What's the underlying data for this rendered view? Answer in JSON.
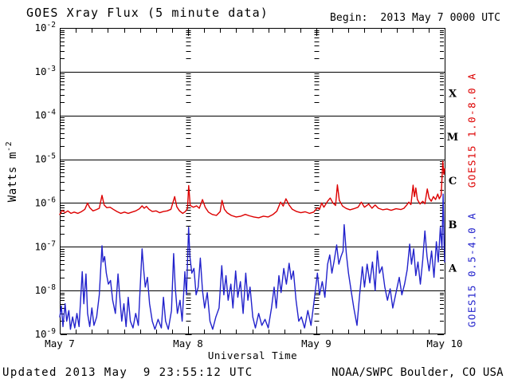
{
  "header": {
    "title": "GOES Xray Flux (5 minute data)",
    "begin_label": "Begin:  2013 May 7 0000 UTC"
  },
  "footer": {
    "updated": "Updated 2013 May  9 23:55:12 UTC",
    "organization": "NOAA/SWPC Boulder, CO USA"
  },
  "chart_data": {
    "type": "line",
    "title": "GOES Xray Flux (5 minute data)",
    "xlabel": "Universal Time",
    "ylabel": {
      "base": "Watts m",
      "exp": "-2"
    },
    "x_axis": {
      "day_labels": [
        "May 7",
        "May 8",
        "May 9",
        "May 10"
      ],
      "total_hours": 72,
      "minor_tick_hours": 3,
      "start": "2013 May 7 0000 UTC"
    },
    "y_axis": {
      "scale": "log",
      "unit": "Watts m^-2",
      "tick_exponents": [
        -2,
        -3,
        -4,
        -5,
        -6,
        -7,
        -8,
        -9
      ],
      "grid_exponents": [
        -3,
        -4,
        -5,
        -6,
        -7,
        -8
      ]
    },
    "flare_classes": [
      {
        "label": "X",
        "mid_exponent": -3.5
      },
      {
        "label": "M",
        "mid_exponent": -4.5
      },
      {
        "label": "C",
        "mid_exponent": -5.5
      },
      {
        "label": "B",
        "mid_exponent": -6.5
      },
      {
        "label": "A",
        "mid_exponent": -7.5
      }
    ],
    "colors": {
      "long": "#dd0000",
      "short": "#2222cc",
      "axis": "#000000"
    },
    "series": [
      {
        "name": "GOES15 1.0-8.0 A",
        "color": "#dd0000",
        "points": [
          [
            0,
            5.5e-07
          ],
          [
            0.5,
            6.8e-07
          ],
          [
            1.0,
            6e-07
          ],
          [
            1.5,
            6.6e-07
          ],
          [
            2.1,
            5.8e-07
          ],
          [
            2.7,
            6.2e-07
          ],
          [
            3.4,
            5.8e-07
          ],
          [
            4.1,
            6.4e-07
          ],
          [
            4.7,
            7.2e-07
          ],
          [
            5.2,
            1e-06
          ],
          [
            5.6,
            7.8e-07
          ],
          [
            6.2,
            6.6e-07
          ],
          [
            6.8,
            7e-07
          ],
          [
            7.4,
            7.6e-07
          ],
          [
            7.9,
            1.5e-06
          ],
          [
            8.3,
            9e-07
          ],
          [
            8.8,
            7.8e-07
          ],
          [
            9.4,
            8e-07
          ],
          [
            10.0,
            7.2e-07
          ],
          [
            10.7,
            6.4e-07
          ],
          [
            11.4,
            5.8e-07
          ],
          [
            12.1,
            6.2e-07
          ],
          [
            12.8,
            5.8e-07
          ],
          [
            13.5,
            6.2e-07
          ],
          [
            14.2,
            6.6e-07
          ],
          [
            14.9,
            7.4e-07
          ],
          [
            15.4,
            8.6e-07
          ],
          [
            15.8,
            7.6e-07
          ],
          [
            16.2,
            8.4e-07
          ],
          [
            16.7,
            7.2e-07
          ],
          [
            17.3,
            6.4e-07
          ],
          [
            18.0,
            6.6e-07
          ],
          [
            18.7,
            6e-07
          ],
          [
            19.4,
            6.4e-07
          ],
          [
            20.1,
            6.6e-07
          ],
          [
            20.8,
            7.2e-07
          ],
          [
            21.5,
            1.4e-06
          ],
          [
            21.9,
            8.2e-07
          ],
          [
            22.4,
            6.6e-07
          ],
          [
            23.0,
            5.8e-07
          ],
          [
            23.5,
            6.4e-07
          ],
          [
            23.9,
            7.5e-07
          ],
          [
            24.12,
            2.5e-06
          ],
          [
            24.4,
            8.8e-07
          ],
          [
            25.0,
            8e-07
          ],
          [
            25.6,
            8.6e-07
          ],
          [
            26.1,
            7.6e-07
          ],
          [
            26.7,
            1.2e-06
          ],
          [
            27.2,
            8e-07
          ],
          [
            27.8,
            6.2e-07
          ],
          [
            28.5,
            5.5e-07
          ],
          [
            29.3,
            5.2e-07
          ],
          [
            30.0,
            6.4e-07
          ],
          [
            30.35,
            1.15e-06
          ],
          [
            30.8,
            7.2e-07
          ],
          [
            31.3,
            6e-07
          ],
          [
            32.1,
            5.2e-07
          ],
          [
            33.0,
            4.8e-07
          ],
          [
            33.9,
            5e-07
          ],
          [
            34.7,
            5.5e-07
          ],
          [
            35.5,
            5.1e-07
          ],
          [
            36.3,
            4.8e-07
          ],
          [
            37.2,
            4.6e-07
          ],
          [
            38.1,
            5e-07
          ],
          [
            39.0,
            4.8e-07
          ],
          [
            39.9,
            5.5e-07
          ],
          [
            40.6,
            6.5e-07
          ],
          [
            41.3,
            1.05e-06
          ],
          [
            41.8,
            8.5e-07
          ],
          [
            42.3,
            1.25e-06
          ],
          [
            42.9,
            9e-07
          ],
          [
            43.5,
            7.2e-07
          ],
          [
            44.3,
            6.4e-07
          ],
          [
            45.1,
            6e-07
          ],
          [
            45.9,
            6.3e-07
          ],
          [
            46.7,
            5.8e-07
          ],
          [
            47.5,
            6.2e-07
          ],
          [
            48.2,
            7.8e-07
          ],
          [
            48.6,
            7.2e-07
          ],
          [
            49.0,
            1e-06
          ],
          [
            49.4,
            8e-07
          ],
          [
            50.1,
            1.1e-06
          ],
          [
            50.6,
            1.3e-06
          ],
          [
            51.1,
            1e-06
          ],
          [
            51.6,
            8.8e-07
          ],
          [
            51.93,
            2.6e-06
          ],
          [
            52.3,
            1.15e-06
          ],
          [
            52.9,
            8.5e-07
          ],
          [
            53.6,
            7.5e-07
          ],
          [
            54.3,
            7e-07
          ],
          [
            55.0,
            7.4e-07
          ],
          [
            55.8,
            8e-07
          ],
          [
            56.4,
            1.05e-06
          ],
          [
            57.0,
            8e-07
          ],
          [
            57.8,
            9.5e-07
          ],
          [
            58.4,
            7.6e-07
          ],
          [
            59.0,
            9e-07
          ],
          [
            59.6,
            7.6e-07
          ],
          [
            60.4,
            7e-07
          ],
          [
            61.2,
            7.3e-07
          ],
          [
            62.0,
            6.8e-07
          ],
          [
            62.9,
            7.4e-07
          ],
          [
            63.8,
            7.1e-07
          ],
          [
            64.4,
            7.6e-07
          ],
          [
            64.9,
            9e-07
          ],
          [
            65.3,
            1.05e-06
          ],
          [
            65.7,
            9.2e-07
          ],
          [
            66.1,
            2.55e-06
          ],
          [
            66.35,
            1.4e-06
          ],
          [
            66.6,
            2.2e-06
          ],
          [
            66.9,
            1.2e-06
          ],
          [
            67.4,
            9.5e-07
          ],
          [
            67.9,
            1.1e-06
          ],
          [
            68.3,
            9.6e-07
          ],
          [
            68.75,
            2.1e-06
          ],
          [
            69.1,
            1.3e-06
          ],
          [
            69.5,
            1.1e-06
          ],
          [
            69.9,
            1.4e-06
          ],
          [
            70.3,
            1.2e-06
          ],
          [
            70.7,
            1.6e-06
          ],
          [
            71.0,
            1.25e-06
          ],
          [
            71.35,
            1.5e-06
          ],
          [
            71.65,
            9e-06
          ],
          [
            71.85,
            4.5e-06
          ],
          [
            72,
            6e-06
          ]
        ]
      },
      {
        "name": "GOES15 0.5-4.0 A",
        "color": "#2222cc",
        "points": [
          [
            0,
            2.5e-09
          ],
          [
            0.3,
            4.5e-09
          ],
          [
            0.6,
            1.5e-09
          ],
          [
            1.0,
            5e-09
          ],
          [
            1.3,
            2e-09
          ],
          [
            1.7,
            3.5e-09
          ],
          [
            2.0,
            1.3e-09
          ],
          [
            2.4,
            2.5e-09
          ],
          [
            2.8,
            1.4e-09
          ],
          [
            3.2,
            3e-09
          ],
          [
            3.6,
            1.5e-09
          ],
          [
            4.2,
            2.7e-08
          ],
          [
            4.5,
            5e-09
          ],
          [
            4.9,
            2.4e-08
          ],
          [
            5.2,
            3e-09
          ],
          [
            5.6,
            1.5e-09
          ],
          [
            6.0,
            4e-09
          ],
          [
            6.4,
            1.6e-09
          ],
          [
            6.9,
            2.5e-09
          ],
          [
            7.4,
            8e-09
          ],
          [
            7.9,
            1.05e-07
          ],
          [
            8.1,
            4.5e-08
          ],
          [
            8.4,
            6e-08
          ],
          [
            8.7,
            2.5e-08
          ],
          [
            9.1,
            1.4e-08
          ],
          [
            9.5,
            1.7e-08
          ],
          [
            9.9,
            6e-09
          ],
          [
            10.4,
            3e-09
          ],
          [
            10.9,
            2.4e-08
          ],
          [
            11.2,
            8e-09
          ],
          [
            11.6,
            2e-09
          ],
          [
            12.0,
            5e-09
          ],
          [
            12.4,
            1.5e-09
          ],
          [
            12.8,
            7e-09
          ],
          [
            13.2,
            2e-09
          ],
          [
            13.7,
            1.4e-09
          ],
          [
            14.2,
            3e-09
          ],
          [
            14.7,
            1.6e-09
          ],
          [
            15.4,
            9e-08
          ],
          [
            15.7,
            3e-08
          ],
          [
            16.0,
            1.2e-08
          ],
          [
            16.4,
            2e-08
          ],
          [
            16.8,
            5e-09
          ],
          [
            17.3,
            2e-09
          ],
          [
            17.8,
            1.3e-09
          ],
          [
            18.4,
            2.2e-09
          ],
          [
            19.0,
            1.4e-09
          ],
          [
            19.4,
            7e-09
          ],
          [
            19.8,
            2e-09
          ],
          [
            20.3,
            1.3e-09
          ],
          [
            20.9,
            3.5e-09
          ],
          [
            21.3,
            7e-08
          ],
          [
            21.6,
            1.2e-08
          ],
          [
            22.0,
            3e-09
          ],
          [
            22.5,
            6e-09
          ],
          [
            22.9,
            2e-09
          ],
          [
            23.4,
            2.7e-08
          ],
          [
            23.7,
            8e-09
          ],
          [
            24.1,
            2.8e-07
          ],
          [
            24.35,
            6e-08
          ],
          [
            24.7,
            2.5e-08
          ],
          [
            25.1,
            3.2e-08
          ],
          [
            25.5,
            8e-09
          ],
          [
            25.9,
            1.2e-08
          ],
          [
            26.3,
            5.5e-08
          ],
          [
            26.7,
            1e-08
          ],
          [
            27.1,
            4e-09
          ],
          [
            27.6,
            9e-09
          ],
          [
            28.1,
            2e-09
          ],
          [
            28.6,
            1.3e-09
          ],
          [
            29.2,
            2.5e-09
          ],
          [
            29.8,
            4e-09
          ],
          [
            30.3,
            3.7e-08
          ],
          [
            30.7,
            8e-09
          ],
          [
            31.1,
            2.2e-08
          ],
          [
            31.5,
            6e-09
          ],
          [
            32.0,
            1.4e-08
          ],
          [
            32.4,
            4e-09
          ],
          [
            32.9,
            2.8e-08
          ],
          [
            33.3,
            7e-09
          ],
          [
            33.8,
            1.6e-08
          ],
          [
            34.3,
            3e-09
          ],
          [
            34.8,
            2.5e-08
          ],
          [
            35.2,
            6e-09
          ],
          [
            35.6,
            1.2e-08
          ],
          [
            36.1,
            2.5e-09
          ],
          [
            36.6,
            1.4e-09
          ],
          [
            37.2,
            3e-09
          ],
          [
            37.8,
            1.6e-09
          ],
          [
            38.4,
            2.2e-09
          ],
          [
            39.0,
            1.4e-09
          ],
          [
            39.6,
            4e-09
          ],
          [
            40.1,
            1.2e-08
          ],
          [
            40.5,
            4e-09
          ],
          [
            41.0,
            2.2e-08
          ],
          [
            41.4,
            9e-09
          ],
          [
            41.9,
            3.2e-08
          ],
          [
            42.4,
            1.4e-08
          ],
          [
            42.9,
            4.2e-08
          ],
          [
            43.3,
            1.8e-08
          ],
          [
            43.7,
            2.8e-08
          ],
          [
            44.2,
            6e-09
          ],
          [
            44.7,
            2e-09
          ],
          [
            45.2,
            2.5e-09
          ],
          [
            45.8,
            1.4e-09
          ],
          [
            46.4,
            3.5e-09
          ],
          [
            47.0,
            1.6e-09
          ],
          [
            47.6,
            6e-09
          ],
          [
            48.2,
            2.5e-08
          ],
          [
            48.6,
            8e-09
          ],
          [
            49.1,
            1.6e-08
          ],
          [
            49.6,
            7e-09
          ],
          [
            50.1,
            4e-08
          ],
          [
            50.5,
            6.5e-08
          ],
          [
            50.9,
            2.5e-08
          ],
          [
            51.3,
            4.5e-08
          ],
          [
            51.8,
            1.1e-07
          ],
          [
            52.2,
            4e-08
          ],
          [
            52.6,
            6e-08
          ],
          [
            53.0,
            8e-08
          ],
          [
            53.2,
            3.2e-07
          ],
          [
            53.6,
            7e-08
          ],
          [
            54.0,
            2.5e-08
          ],
          [
            54.5,
            1e-08
          ],
          [
            55.0,
            4e-09
          ],
          [
            55.6,
            1.6e-09
          ],
          [
            56.1,
            8e-09
          ],
          [
            56.6,
            3.5e-08
          ],
          [
            57.0,
            1.2e-08
          ],
          [
            57.5,
            4e-08
          ],
          [
            58.0,
            1.5e-08
          ],
          [
            58.5,
            4.5e-08
          ],
          [
            59.0,
            1e-08
          ],
          [
            59.4,
            8e-08
          ],
          [
            59.8,
            2.5e-08
          ],
          [
            60.3,
            3.5e-08
          ],
          [
            60.8,
            1.2e-08
          ],
          [
            61.3,
            6e-09
          ],
          [
            61.8,
            1.1e-08
          ],
          [
            62.3,
            4e-09
          ],
          [
            62.9,
            9e-09
          ],
          [
            63.5,
            2e-08
          ],
          [
            64.0,
            8e-09
          ],
          [
            64.5,
            1.4e-08
          ],
          [
            65.0,
            3e-08
          ],
          [
            65.45,
            1.15e-07
          ],
          [
            65.8,
            4e-08
          ],
          [
            66.2,
            9e-08
          ],
          [
            66.6,
            2.2e-08
          ],
          [
            67.0,
            4.5e-08
          ],
          [
            67.45,
            1.4e-08
          ],
          [
            67.9,
            5e-08
          ],
          [
            68.3,
            2.3e-07
          ],
          [
            68.7,
            6e-08
          ],
          [
            69.1,
            2.8e-08
          ],
          [
            69.55,
            8e-08
          ],
          [
            70.0,
            2e-08
          ],
          [
            70.45,
            1.3e-07
          ],
          [
            70.8,
            4.5e-08
          ],
          [
            71.2,
            2.8e-07
          ],
          [
            71.5,
            9e-08
          ],
          [
            71.72,
            1.6e-06
          ],
          [
            71.9,
            1.2e-07
          ],
          [
            72,
            4.5e-08
          ]
        ]
      }
    ]
  }
}
